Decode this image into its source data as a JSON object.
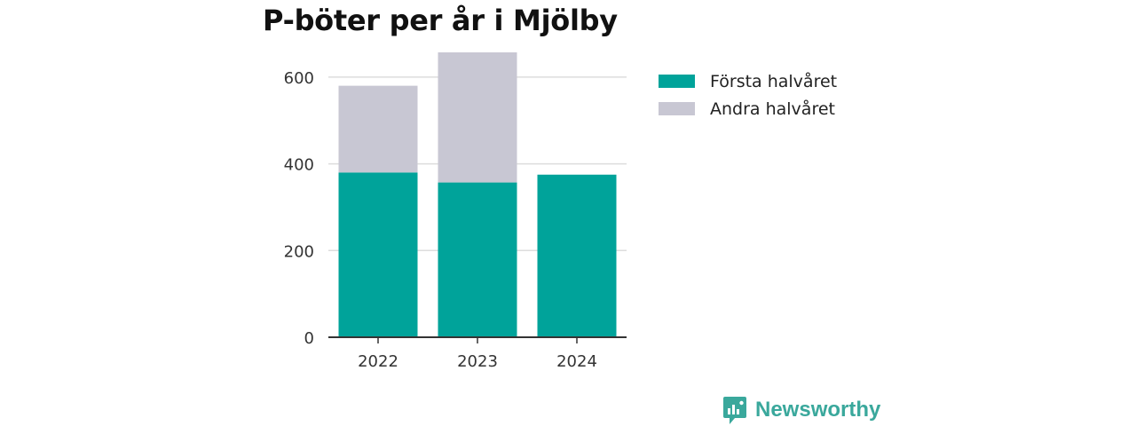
{
  "chart_data": {
    "type": "bar",
    "stacked": true,
    "title": "P-böter per år i Mjölby",
    "categories": [
      "2022",
      "2023",
      "2024"
    ],
    "series": [
      {
        "name": "Första halvåret",
        "color": "#00a39a",
        "values": [
          380,
          357,
          375
        ]
      },
      {
        "name": "Andra halvåret",
        "color": "#c8c7d3",
        "values": [
          200,
          300,
          0
        ]
      }
    ],
    "xlabel": "",
    "ylabel": "",
    "ylim": [
      0,
      700
    ],
    "yticks": [
      0,
      200,
      400,
      600
    ],
    "grid": true,
    "legend_position": "right"
  },
  "brand": {
    "name": "Newsworthy",
    "icon": "newsworthy-logo-icon",
    "color": "#3aa89c"
  }
}
